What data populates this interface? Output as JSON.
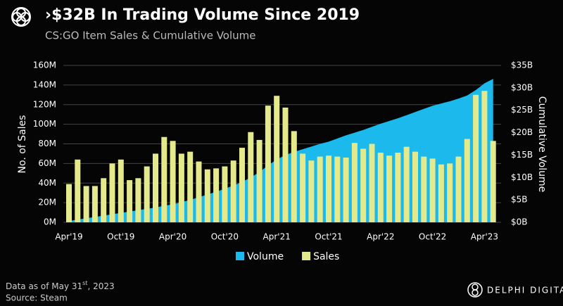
{
  "chart_data": {
    "type": "bar_area",
    "title": "›$32B In Trading Volume Since 2019",
    "subtitle": "CS:GO Item Sales & Cumulative Volume",
    "ylabel": "No. of Sales",
    "y2label": "Cumulative Volume",
    "categories": [
      "Apr'19",
      null,
      null,
      null,
      null,
      null,
      "Oct'19",
      null,
      null,
      null,
      null,
      null,
      "Apr'20",
      null,
      null,
      null,
      null,
      null,
      "Oct'20",
      null,
      null,
      null,
      null,
      null,
      "Apr'21",
      null,
      null,
      null,
      null,
      null,
      "Oct'21",
      null,
      null,
      null,
      null,
      null,
      "Apr'22",
      null,
      null,
      null,
      null,
      null,
      "Oct'22",
      null,
      null,
      null,
      null,
      null,
      "Apr'23",
      null
    ],
    "series": [
      {
        "name": "Volume",
        "type": "area",
        "axis": "y2",
        "color": "#1cb9ec",
        "values": [
          0.3,
          0.6,
          0.9,
          1.2,
          1.5,
          1.8,
          2.1,
          2.4,
          2.7,
          3.0,
          3.3,
          3.7,
          4.0,
          4.5,
          5.0,
          5.6,
          6.2,
          6.8,
          7.5,
          8.2,
          9.0,
          10.0,
          11.2,
          12.7,
          14.0,
          15.0,
          15.7,
          16.3,
          16.9,
          17.5,
          18.0,
          18.7,
          19.4,
          20.0,
          20.6,
          21.3,
          22.0,
          22.6,
          23.2,
          23.9,
          24.6,
          25.3,
          26.0,
          26.5,
          27.0,
          27.6,
          28.3,
          29.5,
          31.0,
          32.0
        ]
      },
      {
        "name": "Sales",
        "type": "bar",
        "axis": "y",
        "color": "#e4e98c",
        "values": [
          39,
          64,
          37,
          37,
          45,
          60,
          64,
          43,
          45,
          57,
          70,
          87,
          83,
          70,
          72,
          62,
          54,
          55,
          57,
          63,
          76,
          92,
          84,
          119,
          129,
          117,
          93,
          70,
          63,
          67,
          68,
          67,
          66,
          81,
          75,
          80,
          71,
          68,
          71,
          77,
          72,
          67,
          65,
          59,
          60,
          67,
          85,
          130,
          134,
          83
        ]
      }
    ],
    "ylim": [
      0,
      160
    ],
    "yticks": [
      {
        "value": 0,
        "label": "0M"
      },
      {
        "value": 20,
        "label": "20M"
      },
      {
        "value": 40,
        "label": "40M"
      },
      {
        "value": 60,
        "label": "60M"
      },
      {
        "value": 80,
        "label": "80M"
      },
      {
        "value": 100,
        "label": "100M"
      },
      {
        "value": 120,
        "label": "120M"
      },
      {
        "value": 140,
        "label": "140M"
      },
      {
        "value": 160,
        "label": "160M"
      }
    ],
    "y2lim": [
      0,
      35
    ],
    "y2ticks": [
      {
        "value": 0,
        "label": "$0B"
      },
      {
        "value": 5,
        "label": "$5B"
      },
      {
        "value": 10,
        "label": "$10B"
      },
      {
        "value": 15,
        "label": "$15B"
      },
      {
        "value": 20,
        "label": "$20B"
      },
      {
        "value": 25,
        "label": "$25B"
      },
      {
        "value": 30,
        "label": "$30B"
      },
      {
        "value": 35,
        "label": "$35B"
      }
    ],
    "grid": true,
    "legend": "bottom",
    "note": [
      "Data as of May 31",
      "st",
      ", 2023"
    ],
    "source": "Source: Steam",
    "brand": "DELPHI DIGITAL"
  }
}
